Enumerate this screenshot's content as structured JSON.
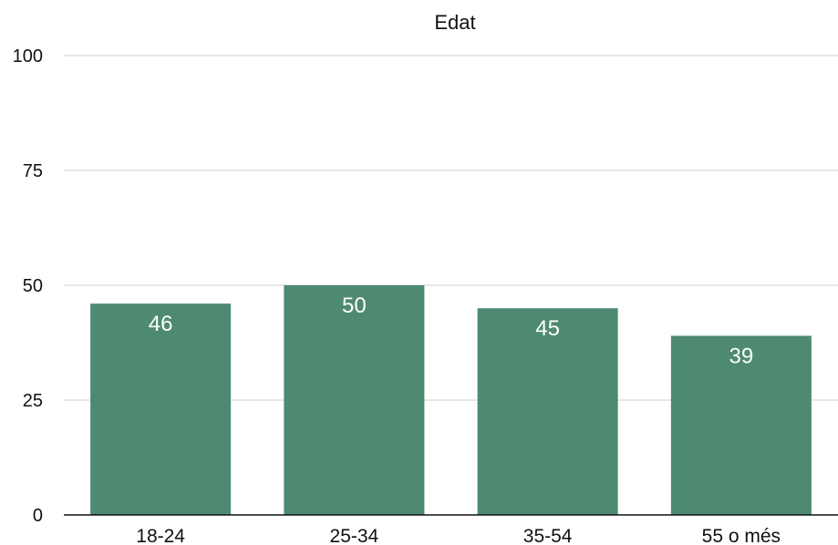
{
  "chart_data": {
    "type": "bar",
    "title": "Edat",
    "xlabel": "",
    "ylabel": "",
    "categories": [
      "18-24",
      "25-34",
      "35-54",
      "55 o més"
    ],
    "values": [
      46,
      50,
      45,
      39
    ],
    "data_labels": [
      "46",
      "50",
      "45",
      "39"
    ],
    "ylim": [
      0,
      100
    ],
    "yticks": [
      0,
      25,
      50,
      75,
      100
    ],
    "ytick_labels": [
      "0",
      "25",
      "50",
      "75",
      "100"
    ],
    "grid": true,
    "legend": "none",
    "colors": {
      "bar": "#4e8a72",
      "grid": "#cfcfcf",
      "axis": "#111111",
      "data_label": "#ffffff"
    }
  }
}
